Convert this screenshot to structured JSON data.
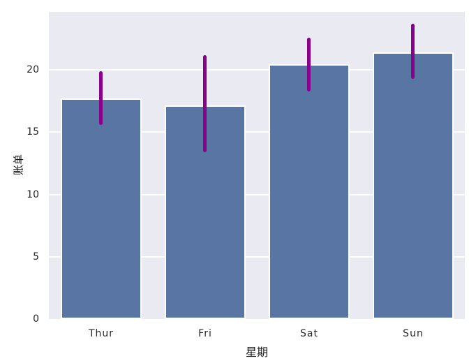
{
  "chart_data": {
    "type": "bar",
    "title": "",
    "xlabel": "星期",
    "ylabel": "账单",
    "categories": [
      "Thur",
      "Fri",
      "Sat",
      "Sun"
    ],
    "values": [
      17.68,
      17.15,
      20.44,
      21.41
    ],
    "error_bars": [
      {
        "low": 15.6,
        "high": 19.9
      },
      {
        "low": 13.4,
        "high": 21.2
      },
      {
        "low": 18.3,
        "high": 22.6
      },
      {
        "low": 19.3,
        "high": 23.7
      }
    ],
    "yticks": [
      0,
      5,
      10,
      15,
      20
    ],
    "ylim": [
      0,
      24.65
    ],
    "grid": {
      "horizontal": true,
      "vertical": false
    },
    "legend": "none",
    "colors": {
      "bar_fill": "#5875a4",
      "bar_edge": "#ffffff",
      "error_bar": "#8b008b",
      "gridline": "#ffffff",
      "plot_background": "#eaeaf2",
      "figure_background": "#ffffff",
      "text": "#262626"
    }
  }
}
